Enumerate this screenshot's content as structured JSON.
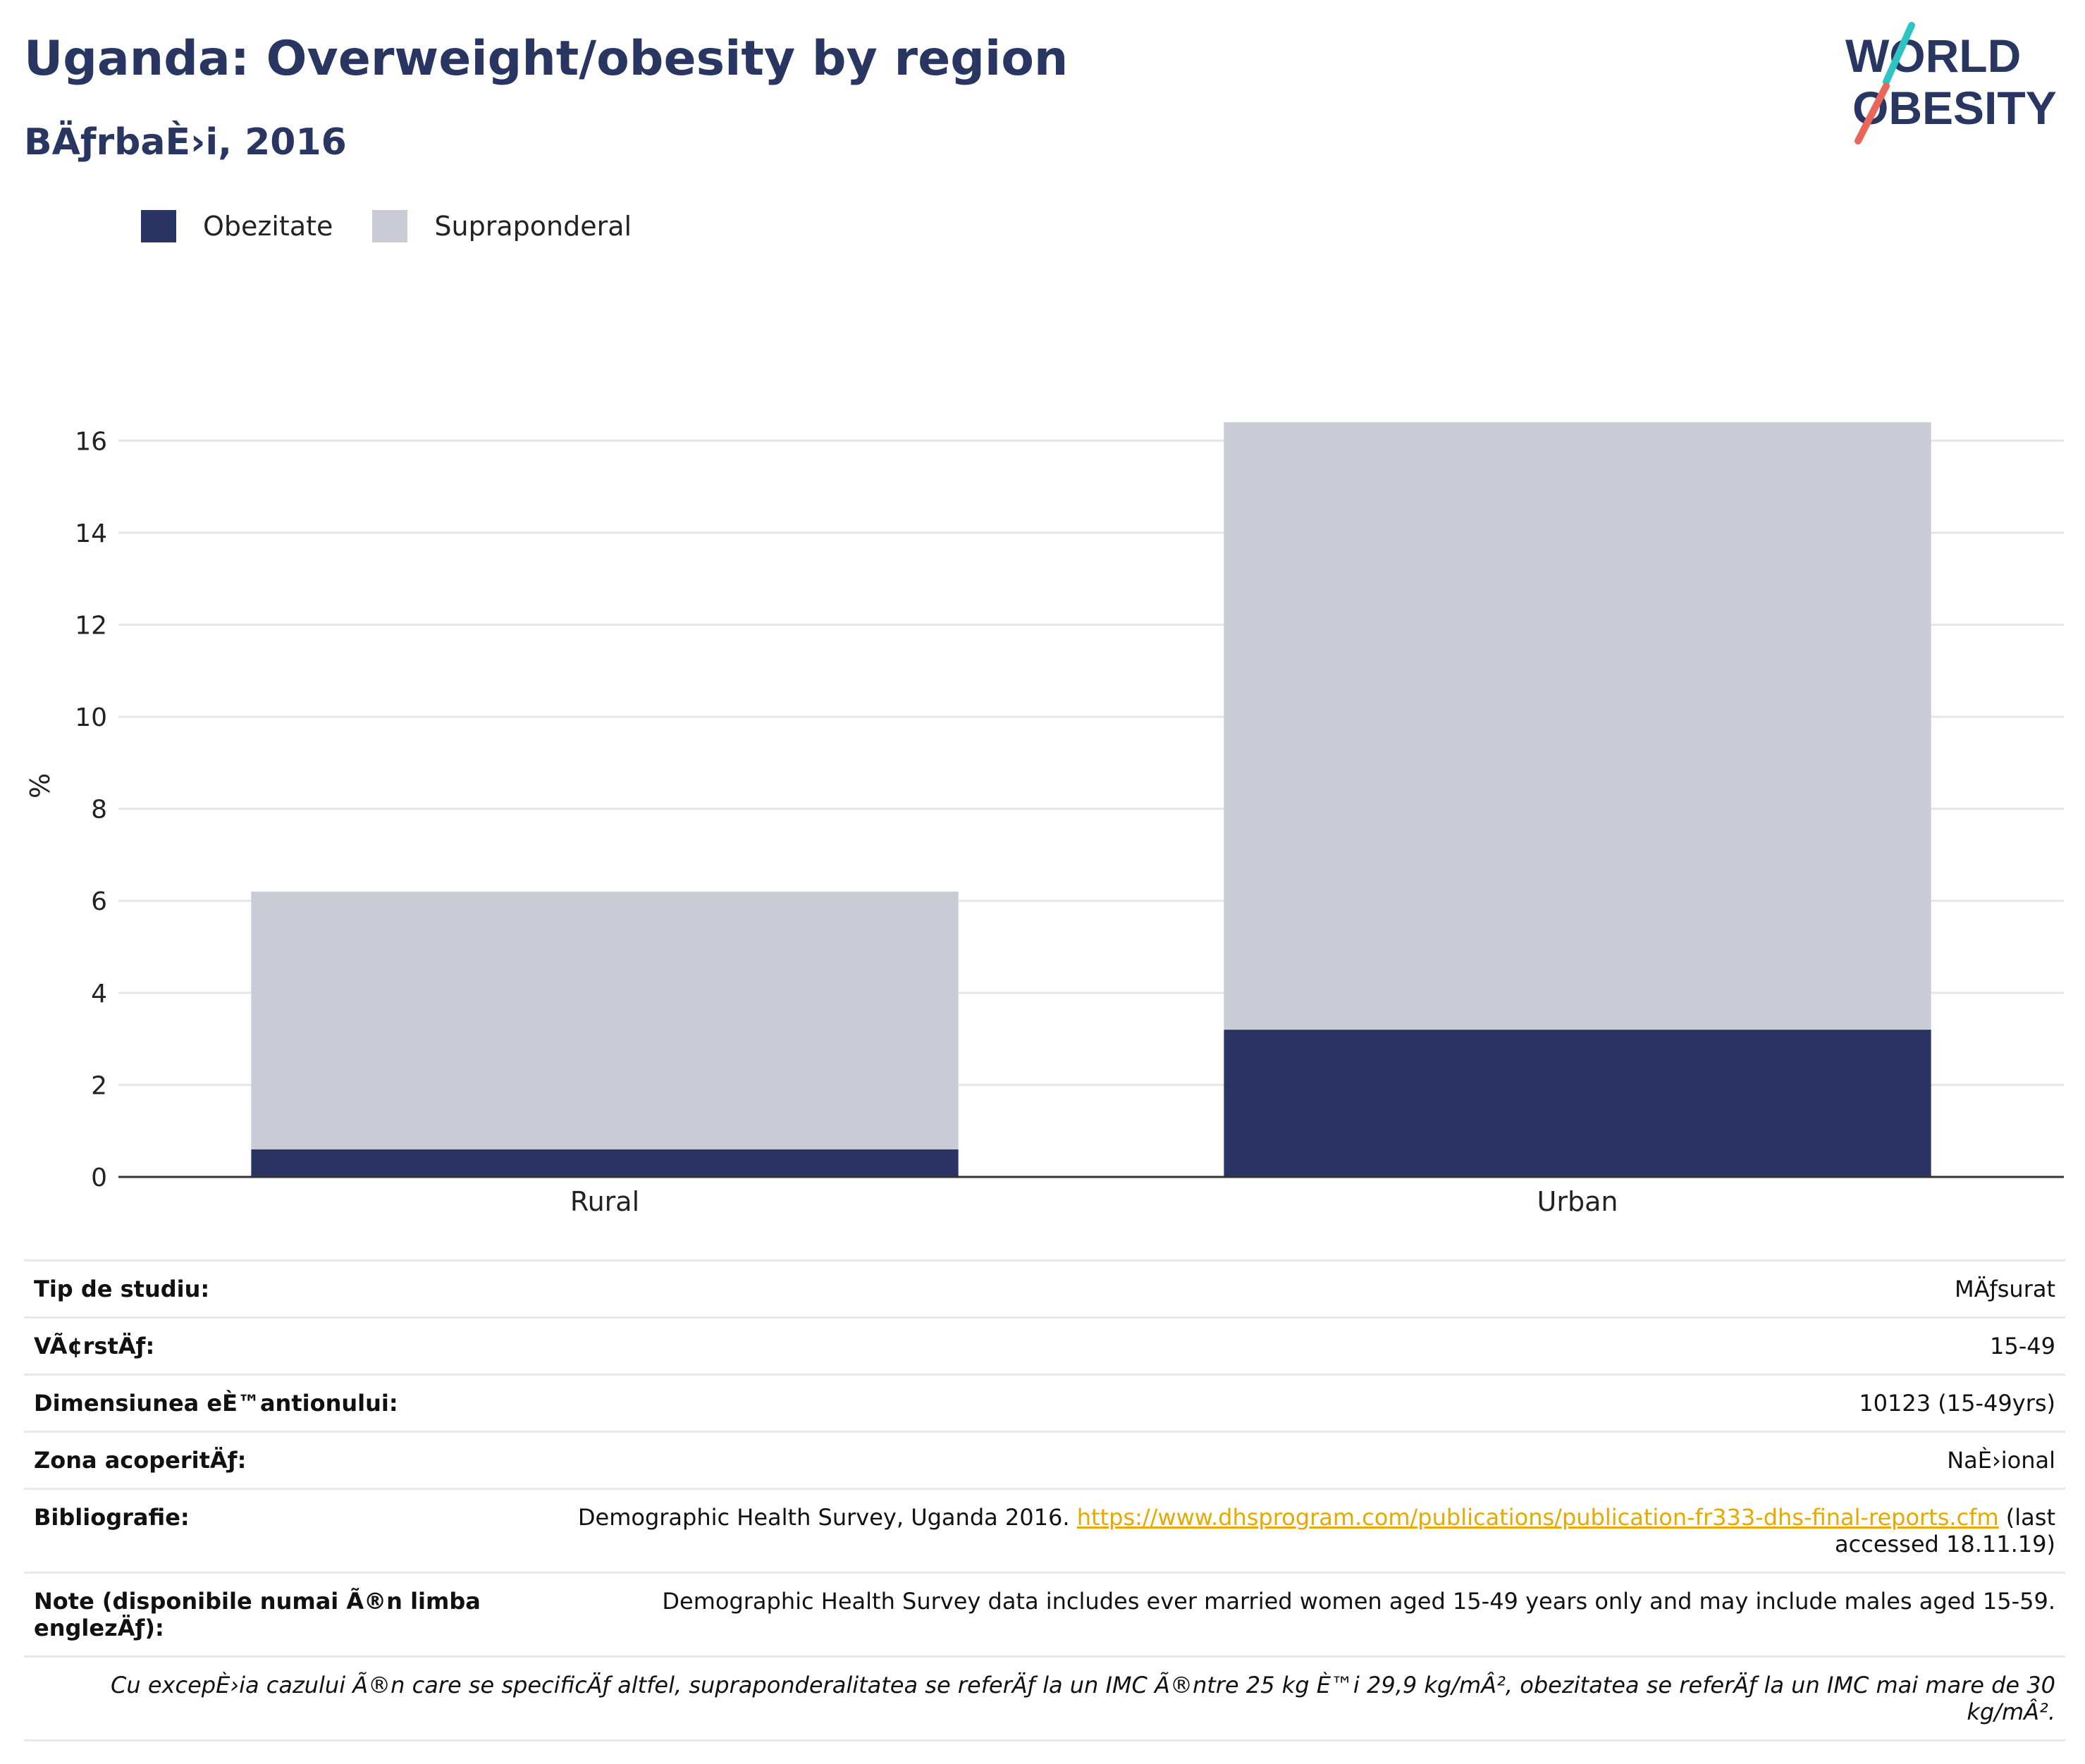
{
  "header": {
    "title": "Uganda: Overweight/obesity by region",
    "subtitle": "BÄƒrbaÈ›i, 2016"
  },
  "logo": {
    "line1": "WORLD",
    "line2": "OBESITY",
    "colors": {
      "text": "#2a3662",
      "slash_top": "#2ec4c4",
      "slash_bottom": "#e8665a"
    }
  },
  "colors": {
    "obesity": "#293462",
    "overweight": "#c9cbd6",
    "grid": "#e6e6ea",
    "axis": "#333333"
  },
  "chart_data": {
    "type": "bar",
    "stacked": true,
    "categories": [
      "Rural",
      "Urban"
    ],
    "series": [
      {
        "name": "Obezitate",
        "values": [
          0.6,
          3.2
        ]
      },
      {
        "name": "Supraponderal",
        "values": [
          5.6,
          13.2
        ]
      }
    ],
    "ylabel": "%",
    "ylim": [
      0,
      17
    ],
    "yticks": [
      0,
      2,
      4,
      6,
      8,
      10,
      12,
      14,
      16
    ],
    "grid": true,
    "legend": "top-left"
  },
  "legend": {
    "items": [
      "Obezitate",
      "Supraponderal"
    ]
  },
  "info": {
    "rows": [
      {
        "key": "Tip de studiu:",
        "value": "MÄƒsurat"
      },
      {
        "key": "VÃ¢rstÄƒ:",
        "value": "15-49"
      },
      {
        "key": "Dimensiunea eÈ™antionului:",
        "value": "10123 (15-49yrs)"
      },
      {
        "key": "Zona acoperitÄƒ:",
        "value": "NaÈ›ional"
      }
    ],
    "bibliography": {
      "key": "Bibliografie:",
      "prefix": "Demographic Health Survey, Uganda 2016. ",
      "link": "https://www.dhsprogram.com/publications/publication-fr333-dhs-final-reports.cfm",
      "suffix": " (last accessed 18.11.19)"
    },
    "note": {
      "key": "Note (disponibile numai Ã®n limba englezÄƒ):",
      "value": "Demographic Health Survey data includes ever married women aged 15-49 years only and may include males aged 15-59."
    },
    "footnote": "Cu excepÈ›ia cazului Ã®n care se specificÄƒ altfel, supraponderalitatea se referÄƒ la un IMC Ã®ntre 25 kg È™i 29,9 kg/mÂ², obezitatea se referÄƒ la un IMC mai mare de 30 kg/mÂ²."
  }
}
